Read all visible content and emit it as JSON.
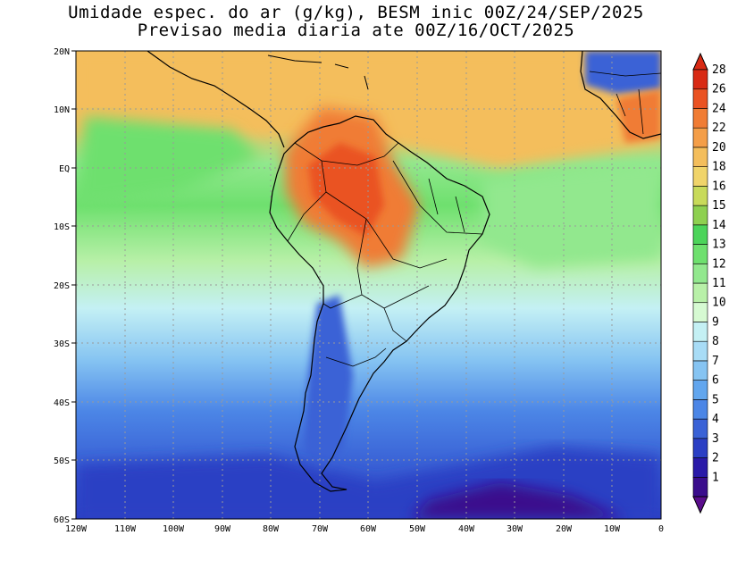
{
  "title": {
    "line1": "Umidade espec. do ar (g/kg), BESM inic 00Z/24/SEP/2025",
    "line2": "Previsao media diaria ate 00Z/16/OCT/2025"
  },
  "lat_labels": [
    "20N",
    "10N",
    "EQ",
    "10S",
    "20S",
    "30S",
    "40S",
    "50S",
    "60S"
  ],
  "lon_labels": [
    "120W",
    "110W",
    "100W",
    "90W",
    "80W",
    "70W",
    "60W",
    "50W",
    "40W",
    "30W",
    "20W",
    "10W",
    "0"
  ],
  "colorbar": {
    "labels": [
      "1",
      "2",
      "3",
      "4",
      "5",
      "6",
      "7",
      "8",
      "9",
      "10",
      "11",
      "12",
      "13",
      "14",
      "15",
      "16",
      "18",
      "20",
      "22",
      "24",
      "26",
      "28"
    ],
    "colors": [
      "#3a0d8c",
      "#2a1aa8",
      "#2b3fc4",
      "#3a62d6",
      "#4c86e6",
      "#62a6ee",
      "#86c4f2",
      "#a8dcf6",
      "#c4f0f4",
      "#d6fad2",
      "#b8f0a8",
      "#92e88e",
      "#6ee06e",
      "#4cd45a",
      "#8ed050",
      "#c8da5a",
      "#f0d46a",
      "#f4be5c",
      "#f49e48",
      "#f07c34",
      "#ea5222",
      "#d82a14"
    ]
  },
  "map": {
    "colors": {
      "ocean_south_deep": "#3a2aa0",
      "ocean_south": "#4a6ad8",
      "ocean_mid": "#86c4f2",
      "ocean_light": "#c4f0f4",
      "ocean_green": "#6ee06e",
      "tropics": "#f4be5c",
      "amazon": "#ea5222",
      "border": "#000000"
    }
  }
}
